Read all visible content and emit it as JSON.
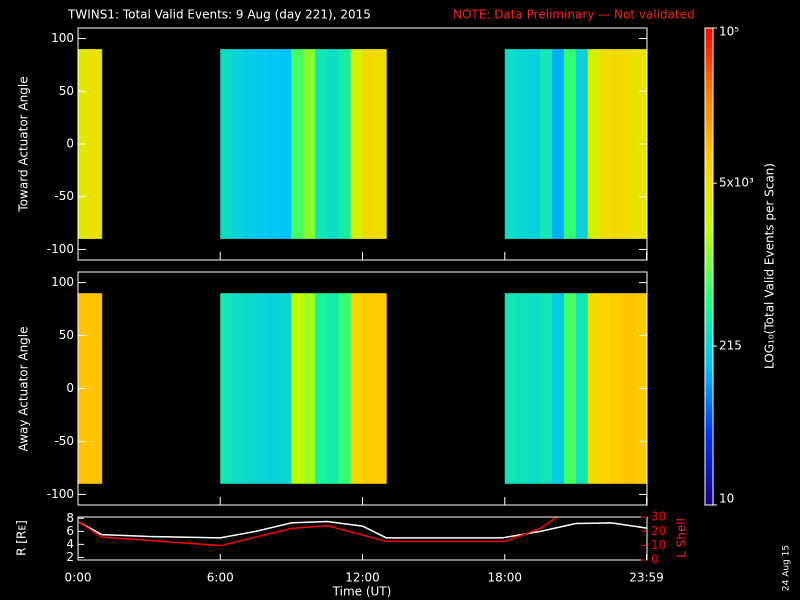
{
  "chart_data": [
    {
      "type": "heatmap",
      "title": "TWINS1: Total Valid Events:  9 Aug (day 221), 2015",
      "note": "NOTE: Data Preliminary — Not validated",
      "ylabel": "Toward Actuator Angle",
      "xlim": [
        0,
        24
      ],
      "ylim": [
        -110,
        110
      ],
      "yticks": [
        -100,
        -50,
        0,
        50,
        100
      ],
      "y_bins": [
        -90,
        90
      ],
      "x": [
        0,
        0.5,
        1,
        1.5,
        2,
        2.5,
        3,
        3.5,
        4,
        4.5,
        5,
        5.5,
        6,
        6.5,
        7,
        7.5,
        8,
        8.5,
        9,
        9.5,
        10,
        10.5,
        11,
        11.5,
        12,
        12.5,
        13,
        13.5,
        14,
        14.5,
        15,
        15.5,
        16,
        16.5,
        17,
        17.5,
        18,
        18.5,
        19,
        19.5,
        20,
        20.5,
        21,
        21.5,
        22,
        22.5,
        23,
        23.5
      ],
      "values": [
        4000,
        4500,
        null,
        null,
        null,
        null,
        null,
        null,
        null,
        null,
        null,
        null,
        250,
        200,
        180,
        170,
        160,
        150,
        700,
        1200,
        300,
        250,
        350,
        3000,
        6000,
        5000,
        null,
        null,
        null,
        null,
        null,
        null,
        null,
        null,
        null,
        null,
        250,
        220,
        200,
        300,
        120,
        600,
        200,
        3000,
        5000,
        6000,
        5000,
        4500
      ],
      "colorbar": {
        "label": "LOG₁₀(Total Valid Events per Scan)",
        "lim": [
          10,
          100000
        ],
        "log": true,
        "ticks": [
          10,
          215,
          {
            "value": 5000,
            "label": "5x10³"
          },
          {
            "value": 100000,
            "label": "10⁵"
          }
        ],
        "colors": [
          "#1a0080",
          "#0030ff",
          "#00c0ff",
          "#20ff80",
          "#c0ff00",
          "#ffd000",
          "#ff8000",
          "#ff0000"
        ]
      }
    },
    {
      "type": "heatmap",
      "ylabel": "Away Actuator Angle",
      "xlim": [
        0,
        24
      ],
      "ylim": [
        -110,
        110
      ],
      "yticks": [
        -100,
        -50,
        0,
        50,
        100
      ],
      "y_bins": [
        -90,
        90
      ],
      "x": [
        0,
        0.5,
        1,
        1.5,
        2,
        2.5,
        3,
        3.5,
        4,
        4.5,
        5,
        5.5,
        6,
        6.5,
        7,
        7.5,
        8,
        8.5,
        9,
        9.5,
        10,
        10.5,
        11,
        11.5,
        12,
        12.5,
        13,
        13.5,
        14,
        14.5,
        15,
        15.5,
        16,
        16.5,
        17,
        17.5,
        18,
        18.5,
        19,
        19.5,
        20,
        20.5,
        21,
        21.5,
        22,
        22.5,
        23,
        23.5
      ],
      "values": [
        9000,
        9000,
        null,
        null,
        null,
        null,
        null,
        null,
        null,
        null,
        null,
        null,
        300,
        260,
        230,
        220,
        200,
        220,
        2000,
        1500,
        400,
        350,
        600,
        6000,
        8000,
        8000,
        null,
        null,
        null,
        null,
        null,
        null,
        null,
        null,
        null,
        null,
        300,
        280,
        250,
        300,
        180,
        700,
        300,
        5000,
        7000,
        8000,
        9000,
        8000
      ]
    },
    {
      "type": "line",
      "xlabel": "Time (UT)",
      "ylabel": "R [Rᴇ]",
      "y2label": "L Shell",
      "footer": "24 Aug 15",
      "xlim": [
        0,
        24
      ],
      "xticks": [
        {
          "value": 0,
          "label": "0:00"
        },
        {
          "value": 6,
          "label": "6:00"
        },
        {
          "value": 12,
          "label": "12:00"
        },
        {
          "value": 18,
          "label": "18:00"
        },
        {
          "value": 23.98,
          "label": "23:59"
        }
      ],
      "ylim": [
        1.6,
        8.2
      ],
      "yticks": [
        2,
        4,
        6,
        8
      ],
      "y2lim": [
        0,
        30
      ],
      "y2ticks": [
        0,
        10,
        20,
        30
      ],
      "y2color": "#ff0000",
      "series": [
        {
          "color": "#ffffff",
          "x": [
            0,
            1,
            3,
            6,
            7.5,
            9,
            10.5,
            12,
            13,
            15,
            17.9,
            19.5,
            21,
            22.5,
            24
          ],
          "values": [
            7.5,
            5.5,
            5.2,
            5,
            6,
            7.3,
            7.5,
            6.8,
            5,
            5,
            5,
            6,
            7.2,
            7.3,
            6.5
          ]
        },
        {
          "color": "#ff0000",
          "axis": "y2",
          "x": [
            0,
            1,
            6,
            9,
            10.5,
            13,
            18,
            19.5,
            20.2
          ],
          "values": [
            27,
            16,
            10,
            22,
            24,
            13,
            13,
            22,
            30
          ]
        }
      ]
    }
  ]
}
